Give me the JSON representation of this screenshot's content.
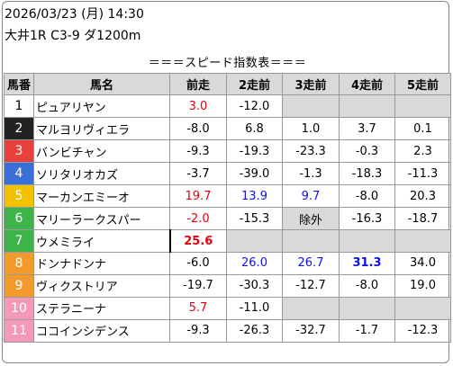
{
  "header": {
    "date": "2026/03/23 (月) 14:30",
    "race": "大井1R C3-9 ダ1200m"
  },
  "table": {
    "title": "＝＝＝スピード指数表＝＝＝",
    "columns": [
      "馬番",
      "馬名",
      "前走",
      "2走前",
      "3走前",
      "4走前",
      "5走前"
    ],
    "colors": {
      "red": "#e8000b",
      "blue": "#1010e0",
      "empty": "#d9d9d9"
    },
    "rows": [
      {
        "num": "1",
        "name": "ピュアリヤン",
        "bg": "#ffffff",
        "fg": "#000000",
        "vals": [
          "3.0",
          "-12.0",
          "",
          "",
          ""
        ],
        "styles": [
          "red",
          "",
          "empty",
          "empty",
          "empty"
        ]
      },
      {
        "num": "2",
        "name": "マルヨリヴィエラ",
        "bg": "#222222",
        "fg": "#ffffff",
        "vals": [
          "-8.0",
          "6.8",
          "1.0",
          "3.7",
          "0.1"
        ],
        "styles": [
          "",
          "",
          "",
          "",
          ""
        ]
      },
      {
        "num": "3",
        "name": "バンビチャン",
        "bg": "#e8413b",
        "fg": "#ffffff",
        "vals": [
          "-9.3",
          "-19.3",
          "-23.3",
          "-0.3",
          "2.3"
        ],
        "styles": [
          "",
          "",
          "",
          "",
          ""
        ]
      },
      {
        "num": "4",
        "name": "ソリタリオカズ",
        "bg": "#3a6fd8",
        "fg": "#ffffff",
        "vals": [
          "-3.7",
          "-39.0",
          "-1.3",
          "-18.3",
          "-11.3"
        ],
        "styles": [
          "",
          "",
          "",
          "",
          ""
        ]
      },
      {
        "num": "5",
        "name": "マーカンエミーオ",
        "bg": "#f2c200",
        "fg": "#ffffff",
        "vals": [
          "19.7",
          "13.9",
          "9.7",
          "-8.0",
          "20.3"
        ],
        "styles": [
          "red",
          "blue",
          "blue",
          "",
          ""
        ]
      },
      {
        "num": "6",
        "name": "マリーラークスパー",
        "bg": "#3db34a",
        "fg": "#ffffff",
        "vals": [
          "-2.0",
          "-15.3",
          "除外",
          "-16.3",
          "-18.7"
        ],
        "styles": [
          "red",
          "",
          "empty",
          "",
          ""
        ]
      },
      {
        "num": "7",
        "name": "ウメミライ",
        "bg": "#3db34a",
        "fg": "#ffffff",
        "vals": [
          "25.6",
          "",
          "",
          "",
          ""
        ],
        "styles": [
          "red bold top",
          "empty",
          "empty",
          "empty",
          "empty"
        ]
      },
      {
        "num": "8",
        "name": "ドンナドンナ",
        "bg": "#f39a2c",
        "fg": "#ffffff",
        "vals": [
          "-6.0",
          "26.0",
          "26.7",
          "31.3",
          "34.0"
        ],
        "styles": [
          "",
          "blue",
          "blue",
          "blue bold",
          ""
        ]
      },
      {
        "num": "9",
        "name": "ヴィクストリア",
        "bg": "#f39a2c",
        "fg": "#ffffff",
        "vals": [
          "-19.7",
          "-30.3",
          "-12.7",
          "-8.0",
          "19.0"
        ],
        "styles": [
          "",
          "",
          "",
          "",
          ""
        ]
      },
      {
        "num": "10",
        "name": "ステラニーナ",
        "bg": "#f49ab8",
        "fg": "#ffffff",
        "vals": [
          "5.7",
          "-11.0",
          "",
          "",
          ""
        ],
        "styles": [
          "red",
          "",
          "empty",
          "empty",
          "empty"
        ]
      },
      {
        "num": "11",
        "name": "ココインシデンス",
        "bg": "#f49ab8",
        "fg": "#ffffff",
        "vals": [
          "-9.3",
          "-26.3",
          "-32.7",
          "-1.7",
          "-12.3"
        ],
        "styles": [
          "",
          "",
          "",
          "",
          ""
        ]
      }
    ]
  }
}
